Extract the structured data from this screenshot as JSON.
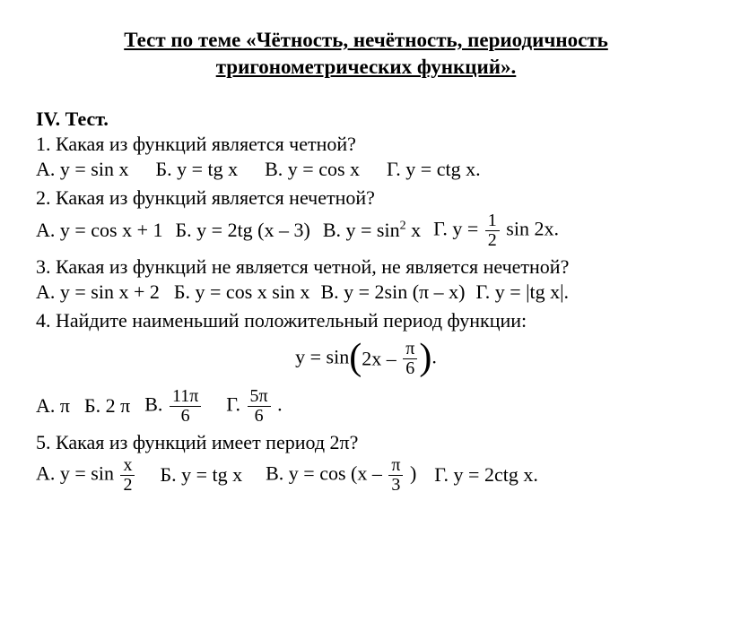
{
  "title_line1": "Тест по теме «Чётность, нечётность, периодичность",
  "title_line2": "тригонометрических функций».",
  "section_header": "IV. Тест.",
  "q1": {
    "text": "1. Какая из функций является четной?",
    "a": "А. у = sin x",
    "b": "Б. у = tg x",
    "c": "В. у = cos x",
    "d": "Г. у = ctg x."
  },
  "q2": {
    "text": "2. Какая из функций является нечетной?",
    "a": "А. у = cos x + 1",
    "b_prefix": "Б. у = 2tg (x – 3)",
    "c_prefix": "В. у = sin",
    "c_sup": "2",
    "c_suffix": " x",
    "d_prefix": "Г. у = ",
    "d_num": "1",
    "d_den": "2",
    "d_suffix": " sin 2x."
  },
  "q3": {
    "text": "3. Какая из функций не является четной, не является нечетной?",
    "a": "А. у = sin x + 2",
    "b": "Б. у = cos x sin x",
    "c": "В. у = 2sin (π – x)",
    "d": "Г. у = |tg x|."
  },
  "q4": {
    "text": "4. Найдите наименьший положительный период функции:",
    "formula_prefix": "y = sin",
    "formula_inner_prefix": "2x – ",
    "formula_num": "π",
    "formula_den": "6",
    "formula_suffix": ".",
    "a": "А. π",
    "b": "Б. 2 π",
    "c_prefix": "В.  ",
    "c_num": "11π",
    "c_den": "6",
    "d_prefix": "Г.  ",
    "d_num": "5π",
    "d_den": "6",
    "d_suffix": " ."
  },
  "q5": {
    "text": "5. Какая из функций имеет период 2π?",
    "a_prefix": "А. у = sin ",
    "a_num": "x",
    "a_den": "2",
    "b": "Б. у = tg x",
    "c_prefix": "В. у = cos (x – ",
    "c_num": "π",
    "c_den": "3",
    "c_suffix": " )",
    "d": "Г. y = 2ctg x."
  }
}
